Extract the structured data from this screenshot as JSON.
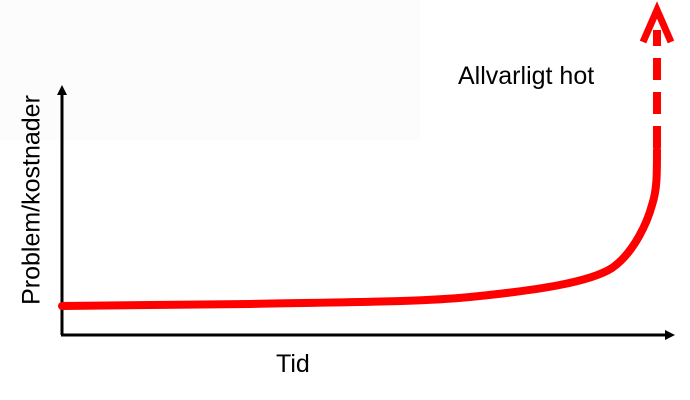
{
  "diagram": {
    "annotation": "Allvarligt hot",
    "x_axis_label": "Tid",
    "y_axis_label": "Problem/kostnader",
    "curve_color": "#ff0000",
    "axis_color": "#000000",
    "shape": "flat-then-exponential-rise, dashed arrow upward"
  }
}
